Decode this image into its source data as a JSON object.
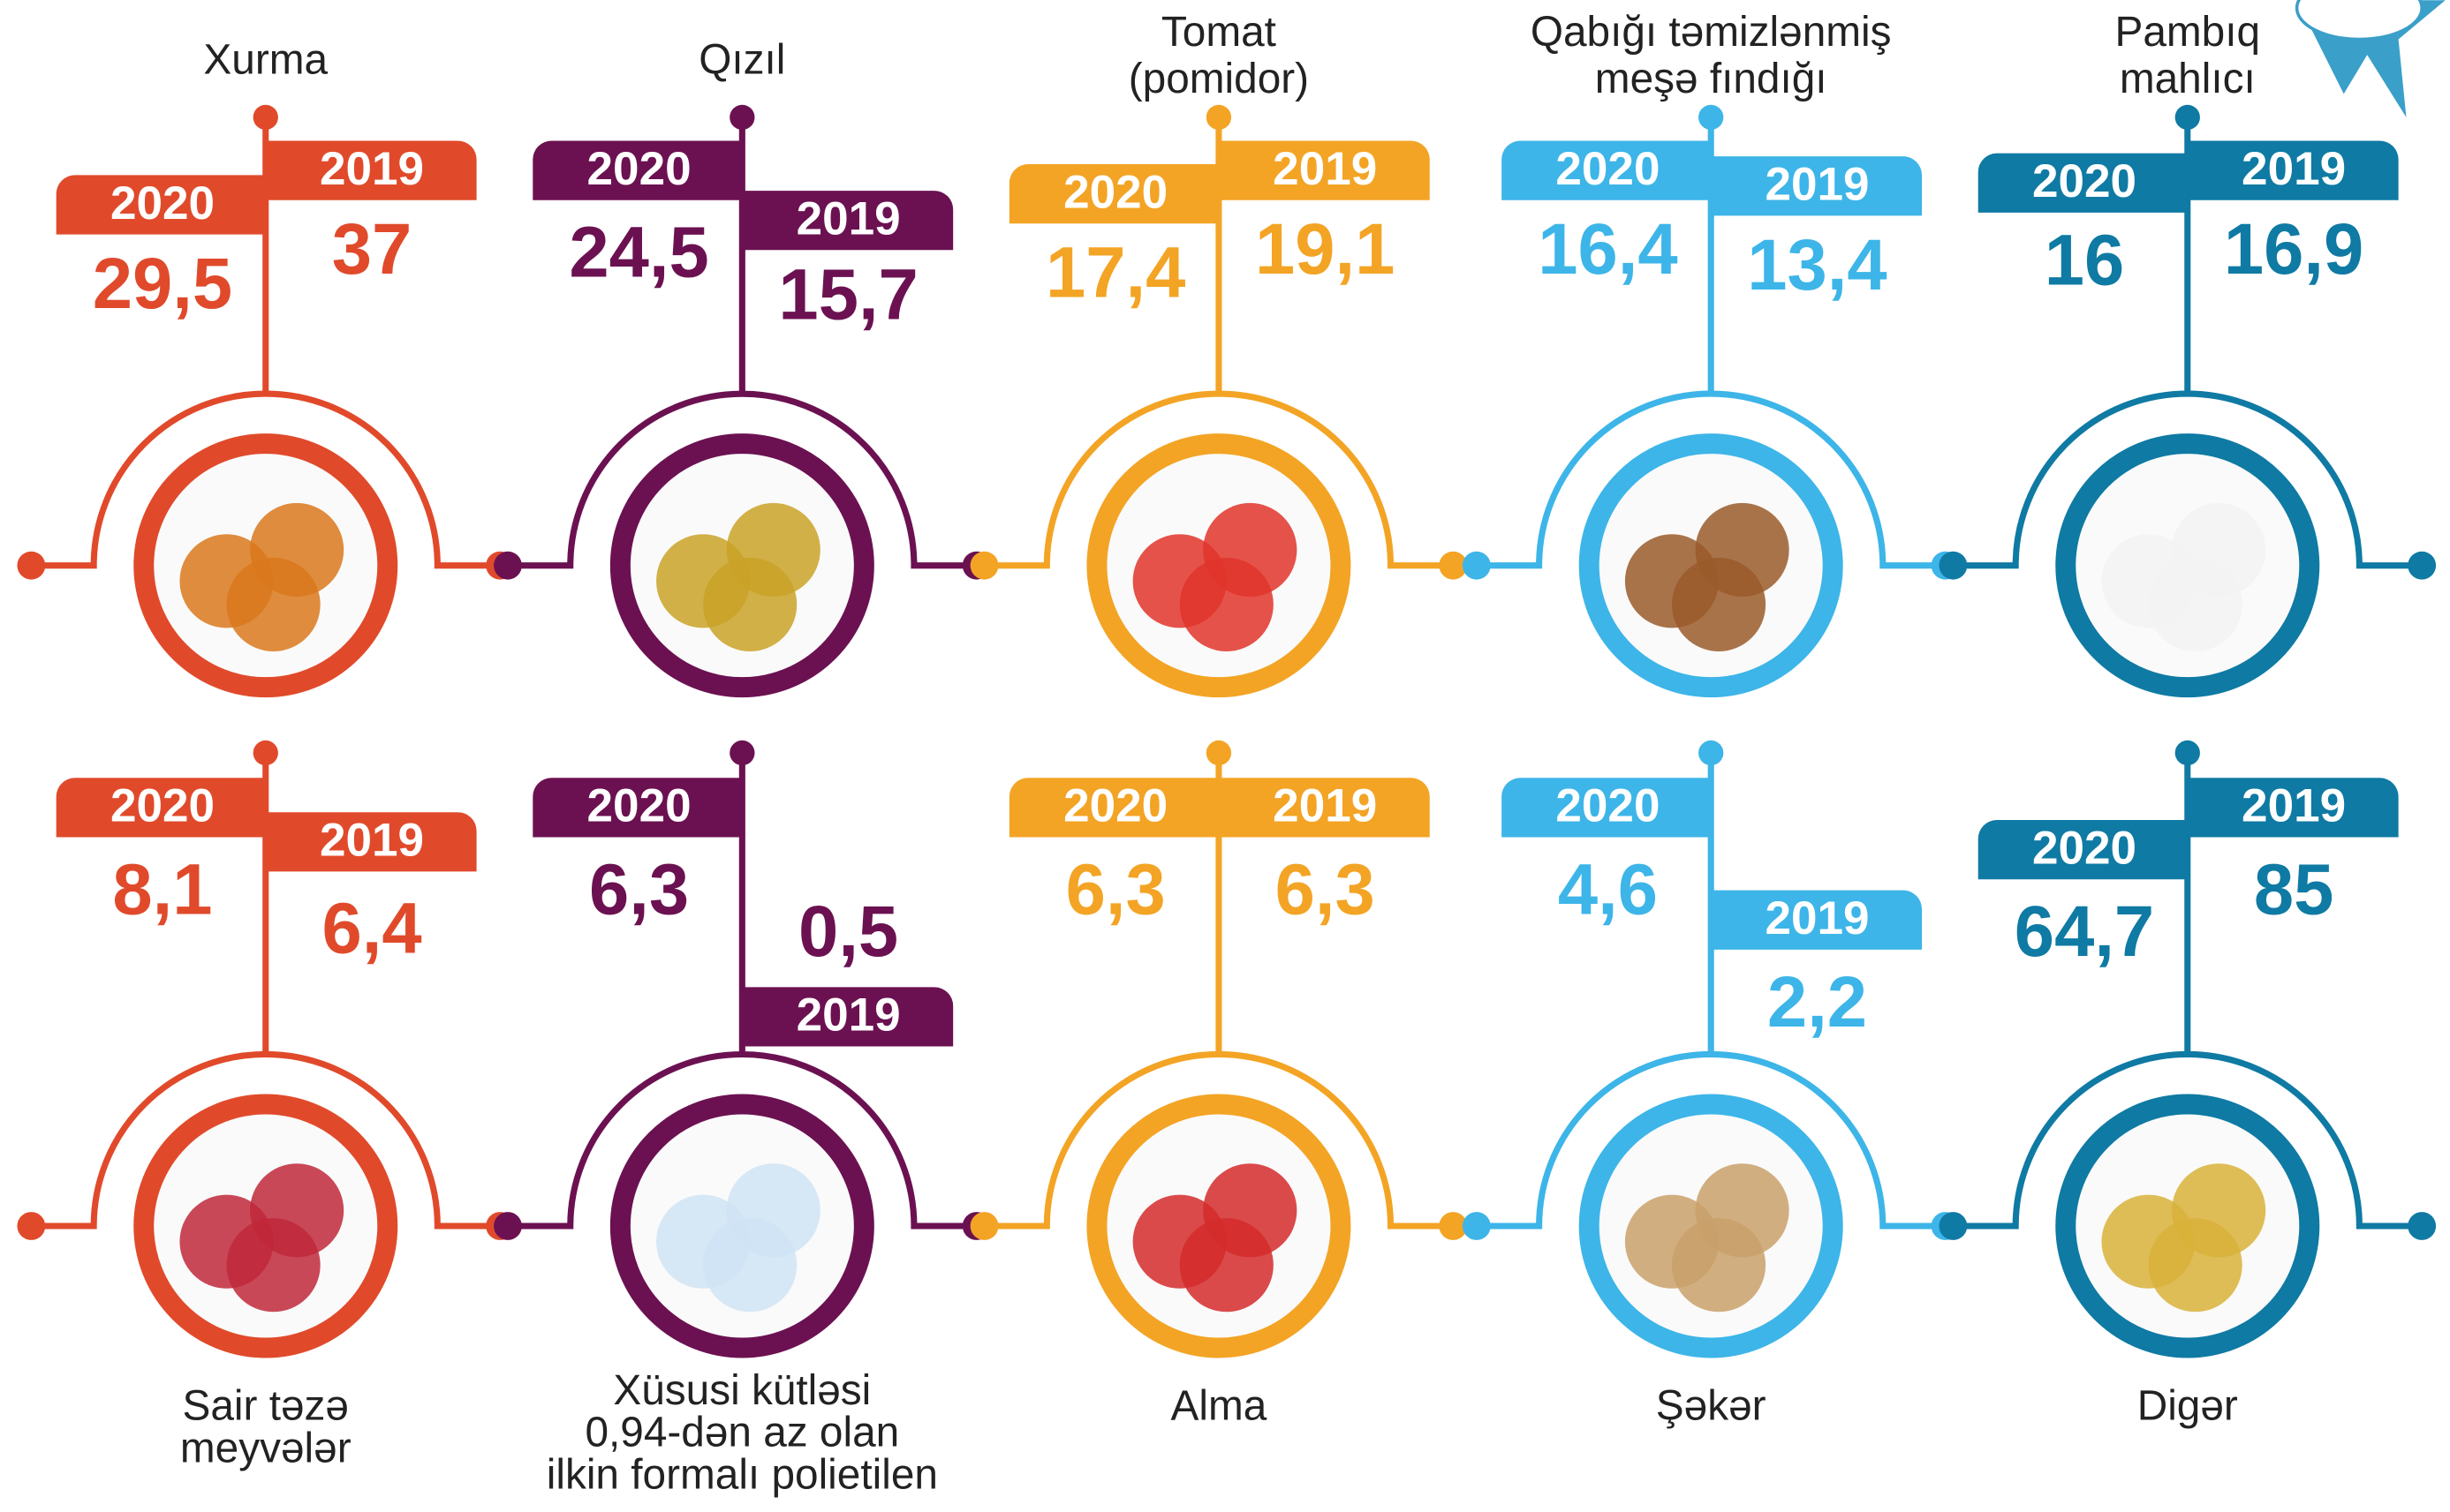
{
  "header": {
    "years": [
      "2020",
      "2019"
    ]
  },
  "items": [
    {
      "name_lines": [
        "Xurma"
      ],
      "color": "#e04a2b",
      "value_2020": "29,5",
      "value_2019": "37"
    },
    {
      "name_lines": [
        "Qızıl"
      ],
      "color": "#6b1151",
      "value_2020": "24,5",
      "value_2019": "15,7"
    },
    {
      "name_lines": [
        "Tomat",
        "(pomidor)"
      ],
      "color": "#f3a425",
      "value_2020": "17,4",
      "value_2019": "19,1"
    },
    {
      "name_lines": [
        "Qabığı təmizlənmiş",
        "meşə fındığı"
      ],
      "color": "#3db5e8",
      "value_2020": "16,4",
      "value_2019": "13,4"
    },
    {
      "name_lines": [
        "Pambıq",
        "mahlıcı"
      ],
      "color": "#0f7aa3",
      "value_2020": "16",
      "value_2019": "16,9"
    },
    {
      "name_lines": [
        "Sair təzə",
        "meyvələr"
      ],
      "color": "#e04a2b",
      "value_2020": "8,1",
      "value_2019": "6,4"
    },
    {
      "name_lines": [
        "Xüsusi kütləsi",
        "0,94-dən az olan",
        "ilkin formalı polietilen"
      ],
      "color": "#6b1151",
      "value_2020": "6,3",
      "value_2019": "0,5"
    },
    {
      "name_lines": [
        "Alma"
      ],
      "color": "#f3a425",
      "value_2020": "6,3",
      "value_2019": "6,3"
    },
    {
      "name_lines": [
        "Şəkər"
      ],
      "color": "#3db5e8",
      "value_2020": "4,6",
      "value_2019": "2,2"
    },
    {
      "name_lines": [
        "Digər"
      ],
      "color": "#0f7aa3",
      "value_2020": "64,7",
      "value_2019": "85"
    }
  ]
}
